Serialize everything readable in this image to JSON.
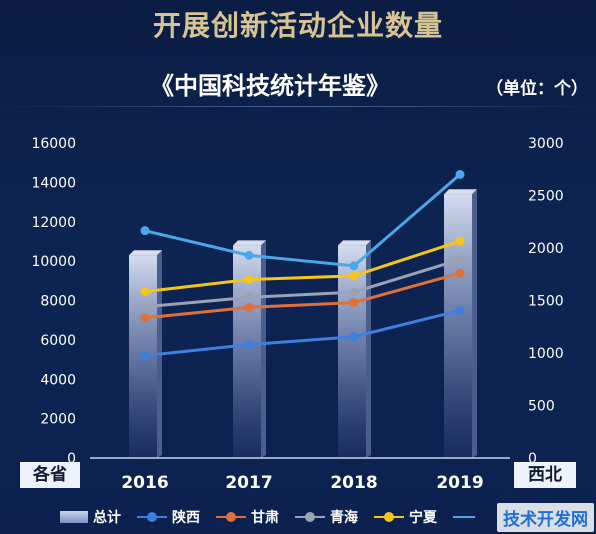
{
  "title": "开展创新活动企业数量",
  "subtitle": "《中国科技统计年鉴》",
  "unit": "（单位：个）",
  "left_corner": "各省",
  "right_corner": "西北",
  "watermark": "技术开发网",
  "chart_data": {
    "type": "bar",
    "categories": [
      "2016",
      "2017",
      "2018",
      "2019"
    ],
    "left_axis": {
      "ylim": [
        0,
        16000
      ],
      "ticks": [
        0,
        2000,
        4000,
        6000,
        8000,
        10000,
        12000,
        14000,
        16000
      ]
    },
    "right_axis": {
      "ylim": [
        0,
        3000
      ],
      "ticks": [
        0,
        500,
        1000,
        1500,
        2000,
        2500,
        3000
      ]
    },
    "series": [
      {
        "name": "总计",
        "kind": "bar",
        "axis": "left",
        "color": "#aab8e2",
        "values": [
          10300,
          10800,
          10800,
          13400
        ]
      },
      {
        "name": "陕西",
        "kind": "line",
        "axis": "right",
        "color": "#3f7fe0",
        "values": [
          975,
          1080,
          1155,
          1405
        ]
      },
      {
        "name": "甘肃",
        "kind": "line",
        "axis": "right",
        "color": "#e0703a",
        "values": [
          1335,
          1435,
          1480,
          1760
        ]
      },
      {
        "name": "青海",
        "kind": "line",
        "axis": "right",
        "color": "#9aa3b5",
        "values": [
          1440,
          1530,
          1580,
          1890
        ]
      },
      {
        "name": "宁夏",
        "kind": "line",
        "axis": "right",
        "color": "#f5c518",
        "values": [
          1585,
          1700,
          1735,
          2065
        ]
      },
      {
        "name": "",
        "kind": "line",
        "axis": "right",
        "color": "#4aa8e8",
        "values": [
          2165,
          1930,
          1830,
          2700
        ]
      }
    ],
    "legend_position": "bottom",
    "grid": false
  }
}
